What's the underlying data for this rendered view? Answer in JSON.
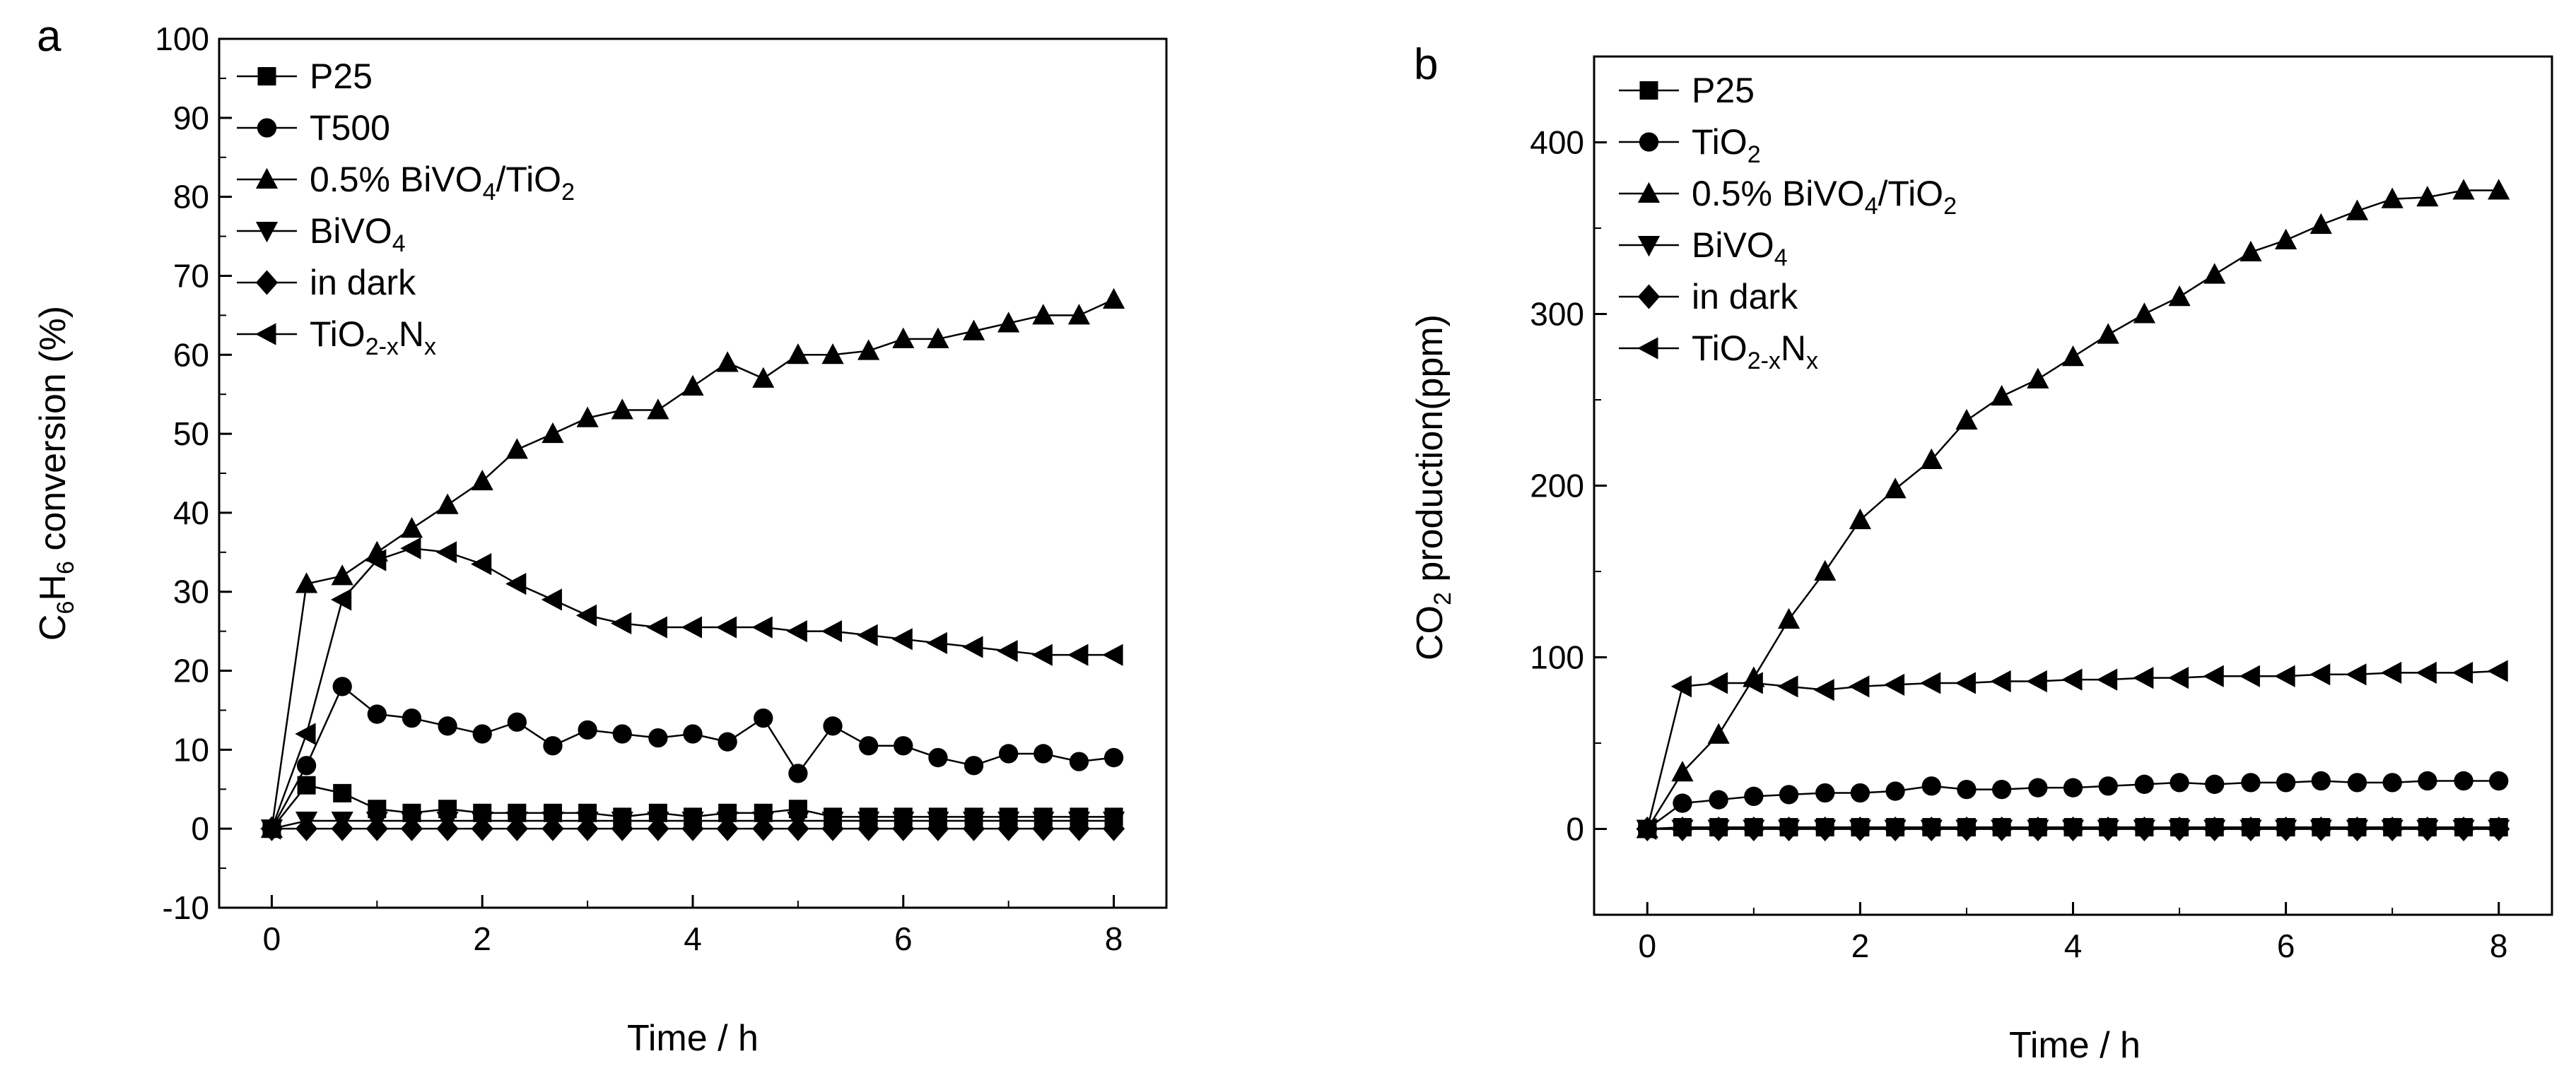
{
  "chart_data": [
    {
      "panel": "a",
      "type": "line",
      "xlabel": "Time / h",
      "ylabel": {
        "prefix": "C",
        "sub1": "6",
        "mid": "H",
        "sub2": "6",
        "suffix": " conversion (%)"
      },
      "xlim": [
        -0.5,
        8.5
      ],
      "ylim": [
        -10,
        100
      ],
      "xticks": [
        0,
        2,
        4,
        6,
        8
      ],
      "yticks": [
        -10,
        0,
        10,
        20,
        30,
        40,
        50,
        60,
        70,
        80,
        90,
        100
      ],
      "grid": false,
      "legend_position": "top-left",
      "series": [
        {
          "name": "P25",
          "label_parts": [
            [
              "P25",
              ""
            ]
          ],
          "marker": "square",
          "x": [
            0,
            0.33,
            0.67,
            1,
            1.33,
            1.67,
            2,
            2.33,
            2.67,
            3,
            3.33,
            3.67,
            4,
            4.33,
            4.67,
            5,
            5.33,
            5.67,
            6,
            6.33,
            6.67,
            7,
            7.33,
            7.67,
            8
          ],
          "y": [
            0,
            5.5,
            4.5,
            2.5,
            2,
            2.5,
            2,
            2,
            2,
            2,
            1.5,
            2,
            1.5,
            2,
            2,
            2.5,
            1.5,
            1.5,
            1.5,
            1.5,
            1.5,
            1.5,
            1.5,
            1.5,
            1.5
          ]
        },
        {
          "name": "T500",
          "label_parts": [
            [
              "T500",
              ""
            ]
          ],
          "marker": "circle",
          "x": [
            0,
            0.33,
            0.67,
            1,
            1.33,
            1.67,
            2,
            2.33,
            2.67,
            3,
            3.33,
            3.67,
            4,
            4.33,
            4.67,
            5,
            5.33,
            5.67,
            6,
            6.33,
            6.67,
            7,
            7.33,
            7.67,
            8
          ],
          "y": [
            0,
            8,
            18,
            14.5,
            14,
            13,
            12,
            13.5,
            10.5,
            12.5,
            12,
            11.5,
            12,
            11,
            14,
            7,
            13,
            10.5,
            10.5,
            9,
            8,
            9.5,
            9.5,
            8.5,
            9
          ]
        },
        {
          "name": "0.5% BiVO4/TiO2",
          "label_parts": [
            [
              "0.5% BiVO",
              ""
            ],
            [
              "4",
              "sub"
            ],
            [
              "/TiO",
              ""
            ],
            [
              "2",
              "sub"
            ]
          ],
          "marker": "triangle-up",
          "x": [
            0,
            0.33,
            0.67,
            1,
            1.33,
            1.67,
            2,
            2.33,
            2.67,
            3,
            3.33,
            3.67,
            4,
            4.33,
            4.67,
            5,
            5.33,
            5.67,
            6,
            6.33,
            6.67,
            7,
            7.33,
            7.67,
            8
          ],
          "y": [
            0,
            31,
            32,
            35,
            38,
            41,
            44,
            48,
            50,
            52,
            53,
            53,
            56,
            59,
            57,
            60,
            60,
            60.5,
            62,
            62,
            63,
            64,
            65,
            65,
            67
          ]
        },
        {
          "name": "BiVO4",
          "label_parts": [
            [
              "BiVO",
              ""
            ],
            [
              "4",
              "sub"
            ]
          ],
          "marker": "triangle-down",
          "x": [
            0,
            0.33,
            0.67,
            1,
            1.33,
            1.67,
            2,
            2.33,
            2.67,
            3,
            3.33,
            3.67,
            4,
            4.33,
            4.67,
            5,
            5.33,
            5.67,
            6,
            6.33,
            6.67,
            7,
            7.33,
            7.67,
            8
          ],
          "y": [
            0,
            1,
            1,
            1,
            1,
            1,
            1,
            1,
            1,
            1,
            1,
            1,
            1,
            1,
            1,
            1,
            1,
            1,
            1,
            1,
            1,
            1,
            1,
            1,
            1
          ]
        },
        {
          "name": "in dark",
          "label_parts": [
            [
              "in dark",
              ""
            ]
          ],
          "marker": "diamond",
          "x": [
            0,
            0.33,
            0.67,
            1,
            1.33,
            1.67,
            2,
            2.33,
            2.67,
            3,
            3.33,
            3.67,
            4,
            4.33,
            4.67,
            5,
            5.33,
            5.67,
            6,
            6.33,
            6.67,
            7,
            7.33,
            7.67,
            8
          ],
          "y": [
            0,
            0,
            0,
            0,
            0,
            0,
            0,
            0,
            0,
            0,
            0,
            0,
            0,
            0,
            0,
            0,
            0,
            0,
            0,
            0,
            0,
            0,
            0,
            0,
            0
          ]
        },
        {
          "name": "TiO2-xNx",
          "label_parts": [
            [
              "TiO",
              ""
            ],
            [
              "2-x",
              "sub"
            ],
            [
              "N",
              ""
            ],
            [
              "x",
              "sub"
            ]
          ],
          "marker": "triangle-left",
          "x": [
            0,
            0.33,
            0.67,
            1,
            1.33,
            1.67,
            2,
            2.33,
            2.67,
            3,
            3.33,
            3.67,
            4,
            4.33,
            4.67,
            5,
            5.33,
            5.67,
            6,
            6.33,
            6.67,
            7,
            7.33,
            7.67,
            8
          ],
          "y": [
            0,
            12,
            29,
            34,
            35.5,
            35,
            33.5,
            31,
            29,
            27,
            26,
            25.5,
            25.5,
            25.5,
            25.5,
            25,
            25,
            24.5,
            24,
            23.5,
            23,
            22.5,
            22,
            22,
            22
          ]
        }
      ]
    },
    {
      "panel": "b",
      "type": "line",
      "xlabel": "Time / h",
      "ylabel": {
        "prefix": "CO",
        "sub1": "2",
        "mid": "",
        "sub2": "",
        "suffix": " production(ppm)"
      },
      "xlim": [
        -0.5,
        8.5
      ],
      "ylim": [
        -50,
        450
      ],
      "xticks": [
        0,
        2,
        4,
        6,
        8
      ],
      "yticks": [
        0,
        100,
        200,
        300,
        400
      ],
      "grid": false,
      "legend_position": "top-left",
      "series": [
        {
          "name": "P25",
          "label_parts": [
            [
              "P25",
              ""
            ]
          ],
          "marker": "square",
          "x": [
            0,
            0.33,
            0.67,
            1,
            1.33,
            1.67,
            2,
            2.33,
            2.67,
            3,
            3.33,
            3.67,
            4,
            4.33,
            4.67,
            5,
            5.33,
            5.67,
            6,
            6.33,
            6.67,
            7,
            7.33,
            7.67,
            8
          ],
          "y": [
            0,
            1,
            1,
            1,
            1,
            1,
            1,
            1,
            1,
            1,
            1,
            1,
            1,
            1,
            1,
            1,
            1,
            1,
            1,
            1,
            1,
            1,
            1,
            1,
            1
          ]
        },
        {
          "name": "TiO2",
          "label_parts": [
            [
              "TiO",
              ""
            ],
            [
              "2",
              "sub"
            ]
          ],
          "marker": "circle",
          "x": [
            0,
            0.33,
            0.67,
            1,
            1.33,
            1.67,
            2,
            2.33,
            2.67,
            3,
            3.33,
            3.67,
            4,
            4.33,
            4.67,
            5,
            5.33,
            5.67,
            6,
            6.33,
            6.67,
            7,
            7.33,
            7.67,
            8
          ],
          "y": [
            0,
            15,
            17,
            19,
            20,
            21,
            21,
            22,
            25,
            23,
            23,
            24,
            24,
            25,
            26,
            27,
            26,
            27,
            27,
            28,
            27,
            27,
            28,
            28,
            28
          ]
        },
        {
          "name": "0.5% BiVO4/TiO2",
          "label_parts": [
            [
              "0.5% BiVO",
              ""
            ],
            [
              "4",
              "sub"
            ],
            [
              "/TiO",
              ""
            ],
            [
              "2",
              "sub"
            ]
          ],
          "marker": "triangle-up",
          "x": [
            0,
            0.33,
            0.67,
            1,
            1.33,
            1.67,
            2,
            2.33,
            2.67,
            3,
            3.33,
            3.67,
            4,
            4.33,
            4.67,
            5,
            5.33,
            5.67,
            6,
            6.33,
            6.67,
            7,
            7.33,
            7.67,
            8
          ],
          "y": [
            0,
            33,
            55,
            88,
            122,
            150,
            180,
            198,
            215,
            238,
            252,
            262,
            275,
            288,
            300,
            310,
            323,
            336,
            343,
            352,
            360,
            367,
            368,
            372,
            372
          ]
        },
        {
          "name": "BiVO4",
          "label_parts": [
            [
              "BiVO",
              ""
            ],
            [
              "4",
              "sub"
            ]
          ],
          "marker": "triangle-down",
          "x": [
            0,
            0.33,
            0.67,
            1,
            1.33,
            1.67,
            2,
            2.33,
            2.67,
            3,
            3.33,
            3.67,
            4,
            4.33,
            4.67,
            5,
            5.33,
            5.67,
            6,
            6.33,
            6.67,
            7,
            7.33,
            7.67,
            8
          ],
          "y": [
            0,
            0,
            0,
            0,
            0,
            0,
            0,
            0,
            0,
            0,
            0,
            0,
            0,
            0,
            0,
            0,
            0,
            0,
            0,
            0,
            0,
            0,
            0,
            0,
            0
          ]
        },
        {
          "name": "in dark",
          "label_parts": [
            [
              "in dark",
              ""
            ]
          ],
          "marker": "diamond",
          "x": [
            0,
            0.33,
            0.67,
            1,
            1.33,
            1.67,
            2,
            2.33,
            2.67,
            3,
            3.33,
            3.67,
            4,
            4.33,
            4.67,
            5,
            5.33,
            5.67,
            6,
            6.33,
            6.67,
            7,
            7.33,
            7.67,
            8
          ],
          "y": [
            0,
            0,
            0,
            0,
            0,
            0,
            0,
            0,
            0,
            0,
            0,
            0,
            0,
            0,
            0,
            0,
            0,
            0,
            0,
            0,
            0,
            0,
            0,
            0,
            0
          ]
        },
        {
          "name": "TiO2-xNx",
          "label_parts": [
            [
              "TiO",
              ""
            ],
            [
              "2-x",
              "sub"
            ],
            [
              "N",
              ""
            ],
            [
              "x",
              "sub"
            ]
          ],
          "marker": "triangle-left",
          "x": [
            0,
            0.33,
            0.67,
            1,
            1.33,
            1.67,
            2,
            2.33,
            2.67,
            3,
            3.33,
            3.67,
            4,
            4.33,
            4.67,
            5,
            5.33,
            5.67,
            6,
            6.33,
            6.67,
            7,
            7.33,
            7.67,
            8
          ],
          "y": [
            0,
            83,
            85,
            85,
            83,
            81,
            83,
            84,
            85,
            85,
            86,
            86,
            87,
            87,
            88,
            88,
            89,
            89,
            89,
            90,
            90,
            91,
            91,
            91,
            92
          ]
        }
      ]
    }
  ]
}
